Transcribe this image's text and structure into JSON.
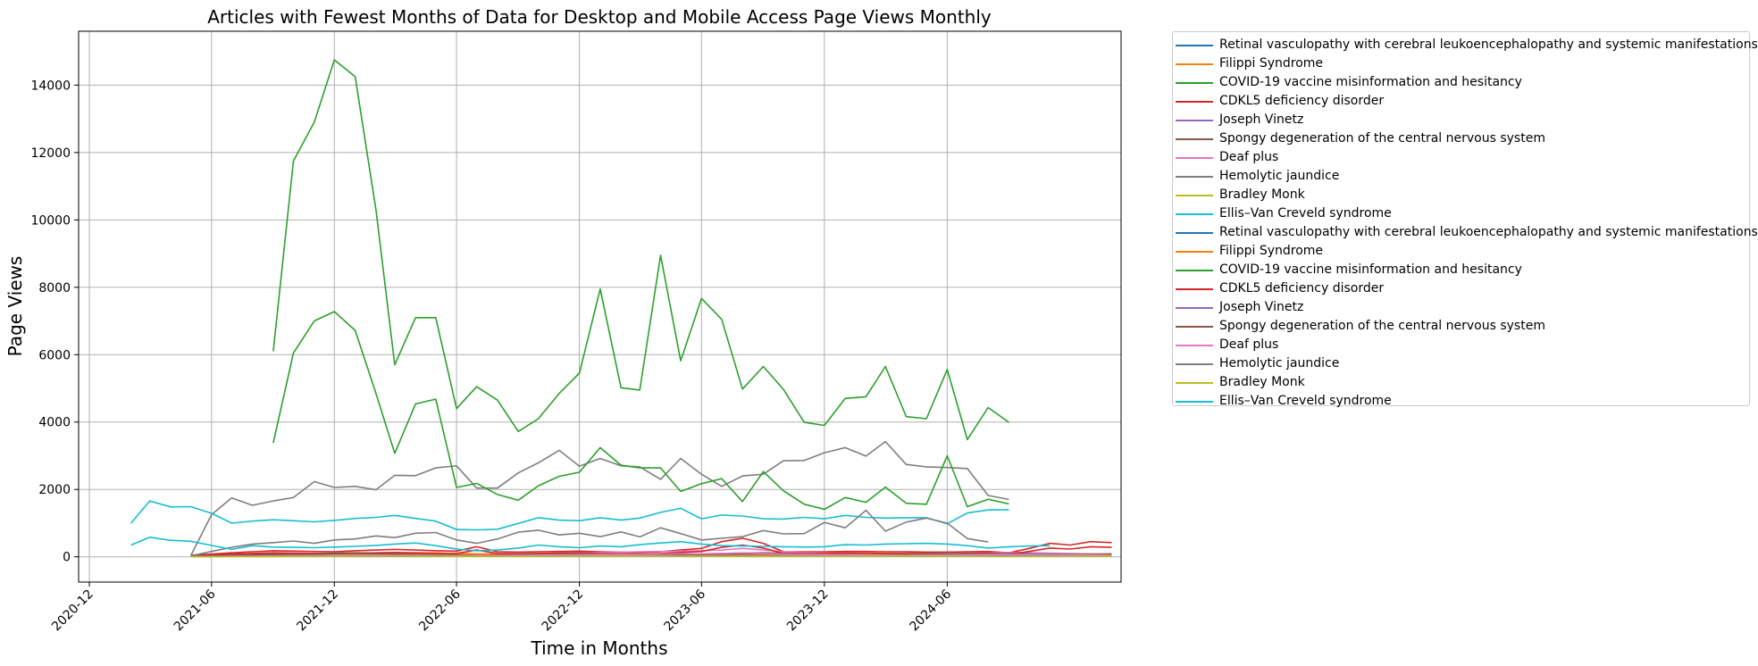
{
  "chart_data": {
    "type": "line",
    "title": "Articles with Fewest Months of Data for Desktop and Mobile Access Page Views Monthly",
    "xlabel": "Time in Months",
    "ylabel": "Page Views",
    "xlim": [
      "2020-11-15",
      "2025-02-15"
    ],
    "ylim": [
      -750,
      15600
    ],
    "grid": true,
    "legend_placement": "outside-right",
    "x_ticks": [
      "2020-12",
      "2021-06",
      "2021-12",
      "2022-06",
      "2022-12",
      "2023-06",
      "2023-12",
      "2024-06"
    ],
    "y_ticks": [
      0,
      2000,
      4000,
      6000,
      8000,
      10000,
      12000,
      14000
    ],
    "series": [
      {
        "name": "Retinal vasculopathy with cerebral leukoencephalopathy and systemic manifestations",
        "color": "#1f77b4",
        "start": "2021-05",
        "values": [
          30,
          35,
          40,
          45,
          50,
          55,
          60,
          65,
          70,
          65,
          60,
          55,
          60,
          65,
          60,
          55,
          60,
          65,
          70,
          75,
          80,
          75,
          70,
          75,
          80,
          85,
          90,
          85,
          80,
          75,
          80,
          85,
          90,
          85,
          80,
          75,
          80,
          85,
          90,
          100,
          110,
          100,
          90,
          85,
          80,
          75
        ]
      },
      {
        "name": "Filippi Syndrome",
        "color": "#ff7f0e",
        "start": "2021-05",
        "values": [
          20,
          25,
          30,
          35,
          40,
          45,
          50,
          60,
          70,
          80,
          90,
          100,
          110,
          100,
          90,
          85,
          80,
          75,
          70,
          70,
          75,
          80,
          85,
          80,
          75,
          70,
          75,
          80,
          85,
          80,
          75,
          70,
          75,
          80,
          85,
          80,
          75,
          70,
          75,
          80,
          85,
          80,
          75,
          70,
          75,
          80
        ]
      },
      {
        "name": "COVID-19 vaccine misinformation and hesitancy",
        "color": "#2ca02c",
        "start": "2021-09",
        "values": [
          6100,
          11750,
          12900,
          14750,
          14250,
          10300,
          5700,
          7100,
          7100,
          4400,
          5050,
          4650,
          3720,
          4100,
          4850,
          5450,
          7950,
          5020,
          4950,
          8950,
          5820,
          7670,
          7050,
          4980,
          5650,
          4970,
          3990,
          3900,
          4700,
          4750,
          5650,
          4160,
          4100,
          5560,
          3480,
          4430,
          3990
        ]
      },
      {
        "name": "CDKL5 deficiency disorder",
        "color": "#d62728",
        "start": "2021-05",
        "values": [
          50,
          80,
          120,
          150,
          180,
          170,
          160,
          150,
          180,
          200,
          220,
          200,
          180,
          170,
          300,
          150,
          140,
          150,
          160,
          170,
          150,
          140,
          130,
          150,
          200,
          250,
          450,
          550,
          400,
          150,
          150,
          150,
          160,
          160,
          150,
          150,
          140,
          140,
          150,
          160,
          120,
          250,
          400,
          350,
          450,
          420
        ]
      },
      {
        "name": "Joseph Vinetz",
        "color": "#9467bd",
        "start": "2021-05",
        "values": [
          20,
          22,
          24,
          26,
          28,
          30,
          32,
          30,
          28,
          30,
          32,
          34,
          36,
          38,
          36,
          34,
          32,
          30,
          32,
          34,
          36,
          40,
          38,
          36,
          34,
          36,
          38,
          40,
          42,
          40,
          38,
          36,
          38,
          40,
          42,
          44,
          42,
          40,
          38,
          36,
          34,
          36,
          38,
          40,
          42,
          44
        ]
      },
      {
        "name": "Spongy degeneration of the central nervous system",
        "color": "#8c564b",
        "start": "2021-05",
        "values": [
          40,
          50,
          60,
          70,
          80,
          90,
          100,
          110,
          120,
          110,
          100,
          90,
          80,
          70,
          60,
          70,
          80,
          90,
          100,
          110,
          100,
          90,
          80,
          70,
          80,
          90,
          100,
          110,
          120,
          110,
          100,
          90,
          80,
          70,
          80,
          90,
          100,
          110,
          120,
          110,
          100,
          90,
          80,
          70,
          80,
          90
        ]
      },
      {
        "name": "Deaf plus",
        "color": "#e377c2",
        "start": "2021-05",
        "values": [
          10,
          20,
          30,
          40,
          50,
          60,
          70,
          80,
          90,
          100,
          90,
          80,
          70,
          60,
          70,
          80,
          90,
          100,
          110,
          120,
          130,
          140,
          150,
          160,
          170,
          180,
          200,
          250,
          200,
          150,
          130,
          120,
          110,
          100,
          90,
          80,
          90,
          100,
          110,
          120,
          130,
          120,
          110,
          100,
          90,
          80
        ]
      },
      {
        "name": "Hemolytic jaundice",
        "color": "#7f7f7f",
        "start": "2021-05",
        "values": [
          30,
          1250,
          1750,
          1530,
          1660,
          1760,
          2230,
          2060,
          2090,
          1990,
          2420,
          2410,
          2640,
          2700,
          2040,
          2040,
          2490,
          2790,
          3160,
          2690,
          2920,
          2700,
          2670,
          2300,
          2920,
          2450,
          2090,
          2400,
          2450,
          2850,
          2860,
          3090,
          3240,
          2990,
          3420,
          2740,
          2670,
          2650,
          2620,
          1820,
          1700
        ]
      },
      {
        "name": "Bradley Monk",
        "color": "#bcbd22",
        "start": "2021-05",
        "values": [
          5,
          8,
          10,
          12,
          15,
          18,
          20,
          22,
          25,
          28,
          30,
          28,
          25,
          22,
          20,
          18,
          20,
          22,
          25,
          28,
          30,
          32,
          35,
          32,
          30,
          28,
          25,
          22,
          20,
          22,
          25,
          28,
          30,
          32,
          35,
          32,
          30,
          28,
          25,
          22,
          20,
          22,
          25,
          28,
          30,
          32
        ]
      },
      {
        "name": "Ellis–Van Creveld syndrome",
        "color": "#17becf",
        "start": "2021-02",
        "values": [
          1000,
          1660,
          1480,
          1490,
          1290,
          1000,
          1060,
          1100,
          1070,
          1040,
          1080,
          1140,
          1170,
          1230,
          1140,
          1060,
          810,
          800,
          820,
          990,
          1160,
          1090,
          1070,
          1160,
          1090,
          1150,
          1320,
          1440,
          1130,
          1240,
          1210,
          1130,
          1120,
          1170,
          1130,
          1230,
          1170,
          1150,
          1160,
          1160,
          980,
          1300,
          1390,
          1400
        ]
      },
      {
        "name": "Retinal vasculopathy with cerebral leukoencephalopathy and systemic manifestations",
        "color": "#1f77b4",
        "start": "2021-05",
        "values": [
          20,
          25,
          30,
          35,
          40,
          45,
          50,
          55,
          60,
          55,
          50,
          45,
          50,
          55,
          50,
          45,
          50,
          55,
          60,
          65,
          70,
          65,
          60,
          65,
          70,
          75,
          80,
          75,
          70,
          65,
          70,
          75,
          80,
          75,
          70,
          65,
          70,
          75,
          80,
          90,
          100,
          90,
          80,
          75,
          70,
          65
        ]
      },
      {
        "name": "Filippi Syndrome",
        "color": "#ff7f0e",
        "start": "2021-05",
        "values": [
          10,
          15,
          20,
          25,
          30,
          35,
          40,
          50,
          60,
          70,
          80,
          90,
          100,
          90,
          80,
          75,
          70,
          65,
          60,
          60,
          65,
          70,
          75,
          70,
          65,
          60,
          65,
          70,
          75,
          70,
          65,
          60,
          65,
          70,
          75,
          70,
          65,
          60,
          65,
          70,
          75,
          70,
          65,
          60,
          65,
          70
        ]
      },
      {
        "name": "COVID-19 vaccine misinformation and hesitancy",
        "color": "#2ca02c",
        "start": "2021-09",
        "values": [
          3380,
          6050,
          7000,
          7280,
          6720,
          4850,
          3070,
          4540,
          4680,
          2060,
          2180,
          1850,
          1680,
          2110,
          2390,
          2510,
          3240,
          2720,
          2640,
          2640,
          1940,
          2170,
          2320,
          1640,
          2530,
          1960,
          1560,
          1410,
          1760,
          1620,
          2070,
          1590,
          1560,
          3000,
          1490,
          1710,
          1570
        ]
      },
      {
        "name": "CDKL5 deficiency disorder",
        "color": "#d62728",
        "start": "2021-05",
        "values": [
          40,
          60,
          80,
          100,
          120,
          110,
          100,
          90,
          110,
          120,
          130,
          120,
          110,
          100,
          200,
          100,
          90,
          100,
          110,
          120,
          100,
          90,
          80,
          100,
          130,
          160,
          280,
          350,
          260,
          100,
          100,
          100,
          110,
          110,
          100,
          100,
          90,
          90,
          100,
          110,
          80,
          160,
          260,
          230,
          300,
          280
        ]
      },
      {
        "name": "Joseph Vinetz",
        "color": "#9467bd",
        "start": "2021-05",
        "values": [
          10,
          12,
          14,
          16,
          18,
          20,
          22,
          20,
          18,
          20,
          22,
          24,
          26,
          28,
          26,
          24,
          22,
          20,
          22,
          24,
          26,
          30,
          28,
          26,
          24,
          26,
          28,
          30,
          32,
          30,
          28,
          26,
          28,
          30,
          32,
          34,
          32,
          30,
          28,
          26,
          24,
          26,
          28,
          30,
          32,
          34
        ]
      },
      {
        "name": "Spongy degeneration of the central nervous system",
        "color": "#8c564b",
        "start": "2021-05",
        "values": [
          20,
          30,
          40,
          50,
          60,
          70,
          80,
          90,
          100,
          90,
          80,
          70,
          60,
          50,
          40,
          50,
          60,
          70,
          80,
          90,
          80,
          70,
          60,
          50,
          60,
          70,
          80,
          90,
          100,
          90,
          80,
          70,
          60,
          50,
          60,
          70,
          80,
          90,
          100,
          90,
          80,
          70,
          60,
          50,
          60,
          70
        ]
      },
      {
        "name": "Deaf plus",
        "color": "#e377c2",
        "start": "2021-05",
        "values": [
          5,
          10,
          15,
          20,
          25,
          30,
          35,
          40,
          45,
          50,
          45,
          40,
          35,
          30,
          35,
          40,
          45,
          50,
          55,
          60,
          65,
          70,
          75,
          80,
          85,
          90,
          100,
          120,
          100,
          80,
          70,
          65,
          60,
          55,
          50,
          45,
          50,
          55,
          60,
          65,
          70,
          65,
          60,
          55,
          50,
          45
        ]
      },
      {
        "name": "Hemolytic jaundice",
        "color": "#7f7f7f",
        "start": "2021-05",
        "values": [
          30,
          160,
          280,
          380,
          420,
          470,
          400,
          500,
          530,
          620,
          570,
          700,
          720,
          500,
          400,
          530,
          730,
          790,
          650,
          700,
          600,
          740,
          590,
          860,
          690,
          500,
          550,
          600,
          780,
          680,
          690,
          1020,
          860,
          1380,
          760,
          1030,
          1150,
          1000,
          540,
          440
        ]
      },
      {
        "name": "Bradley Monk",
        "color": "#bcbd22",
        "start": "2021-05",
        "values": [
          3,
          5,
          6,
          8,
          10,
          12,
          14,
          16,
          18,
          20,
          22,
          20,
          18,
          16,
          14,
          12,
          14,
          16,
          18,
          20,
          22,
          24,
          26,
          24,
          22,
          20,
          18,
          16,
          14,
          16,
          18,
          20,
          22,
          24,
          26,
          24,
          22,
          20,
          18,
          16,
          14,
          16,
          18,
          20,
          22,
          24
        ]
      },
      {
        "name": "Ellis–Van Creveld syndrome",
        "color": "#17becf",
        "start": "2021-02",
        "values": [
          350,
          580,
          490,
          460,
          340,
          220,
          330,
          290,
          280,
          270,
          290,
          310,
          340,
          380,
          410,
          330,
          230,
          180,
          200,
          260,
          350,
          300,
          270,
          320,
          300,
          360,
          410,
          450,
          380,
          330,
          320,
          310,
          300,
          290,
          300,
          360,
          350,
          380,
          390,
          400,
          380,
          330,
          260,
          300,
          320,
          330
        ]
      }
    ]
  }
}
